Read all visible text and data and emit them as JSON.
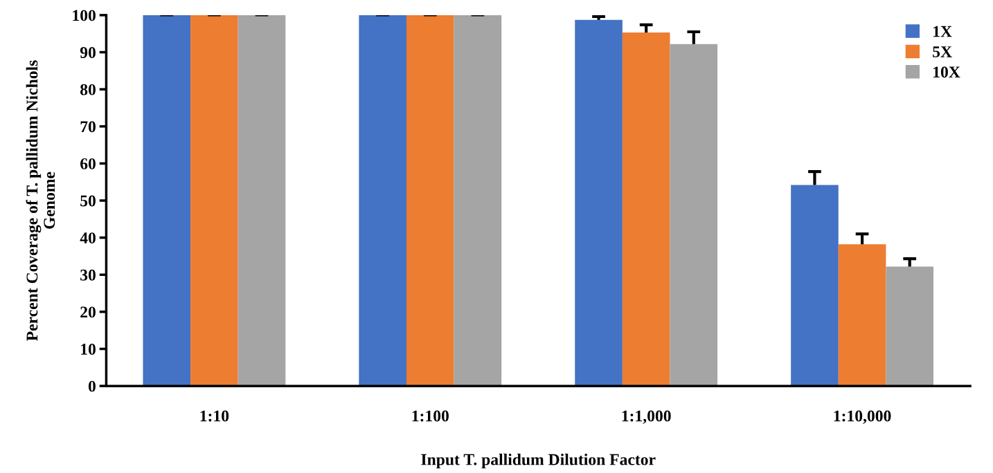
{
  "chart_data": {
    "type": "bar",
    "xlabel": "Input T. pallidum Dilution Factor",
    "ylabel": "Percent Coverage of T. pallidum Nichols\nGenome",
    "categories": [
      "1:10",
      "1:100",
      "1:1,000",
      "1:10,000"
    ],
    "series": [
      {
        "name": "1X",
        "color": "#4472c4",
        "values": [
          100,
          100,
          98.7,
          54.2
        ],
        "errors": [
          [
            100,
            100
          ],
          [
            100,
            100
          ],
          [
            98.7,
            99.6
          ],
          [
            54.2,
            57.8
          ]
        ]
      },
      {
        "name": "5X",
        "color": "#ed7d31",
        "values": [
          100,
          100,
          95.3,
          38.2
        ],
        "errors": [
          [
            100,
            100
          ],
          [
            100,
            100
          ],
          [
            95.3,
            97.4
          ],
          [
            38.2,
            41.0
          ]
        ]
      },
      {
        "name": "10X",
        "color": "#a5a5a5",
        "values": [
          100,
          100,
          92.2,
          32.2
        ],
        "errors": [
          [
            100,
            100
          ],
          [
            100,
            100
          ],
          [
            92.2,
            95.5
          ],
          [
            32.2,
            34.3
          ]
        ]
      }
    ],
    "ylim": [
      0,
      100
    ],
    "yticks": [
      0,
      10,
      20,
      30,
      40,
      50,
      60,
      70,
      80,
      90,
      100
    ],
    "grid": false,
    "legend": "top right"
  }
}
